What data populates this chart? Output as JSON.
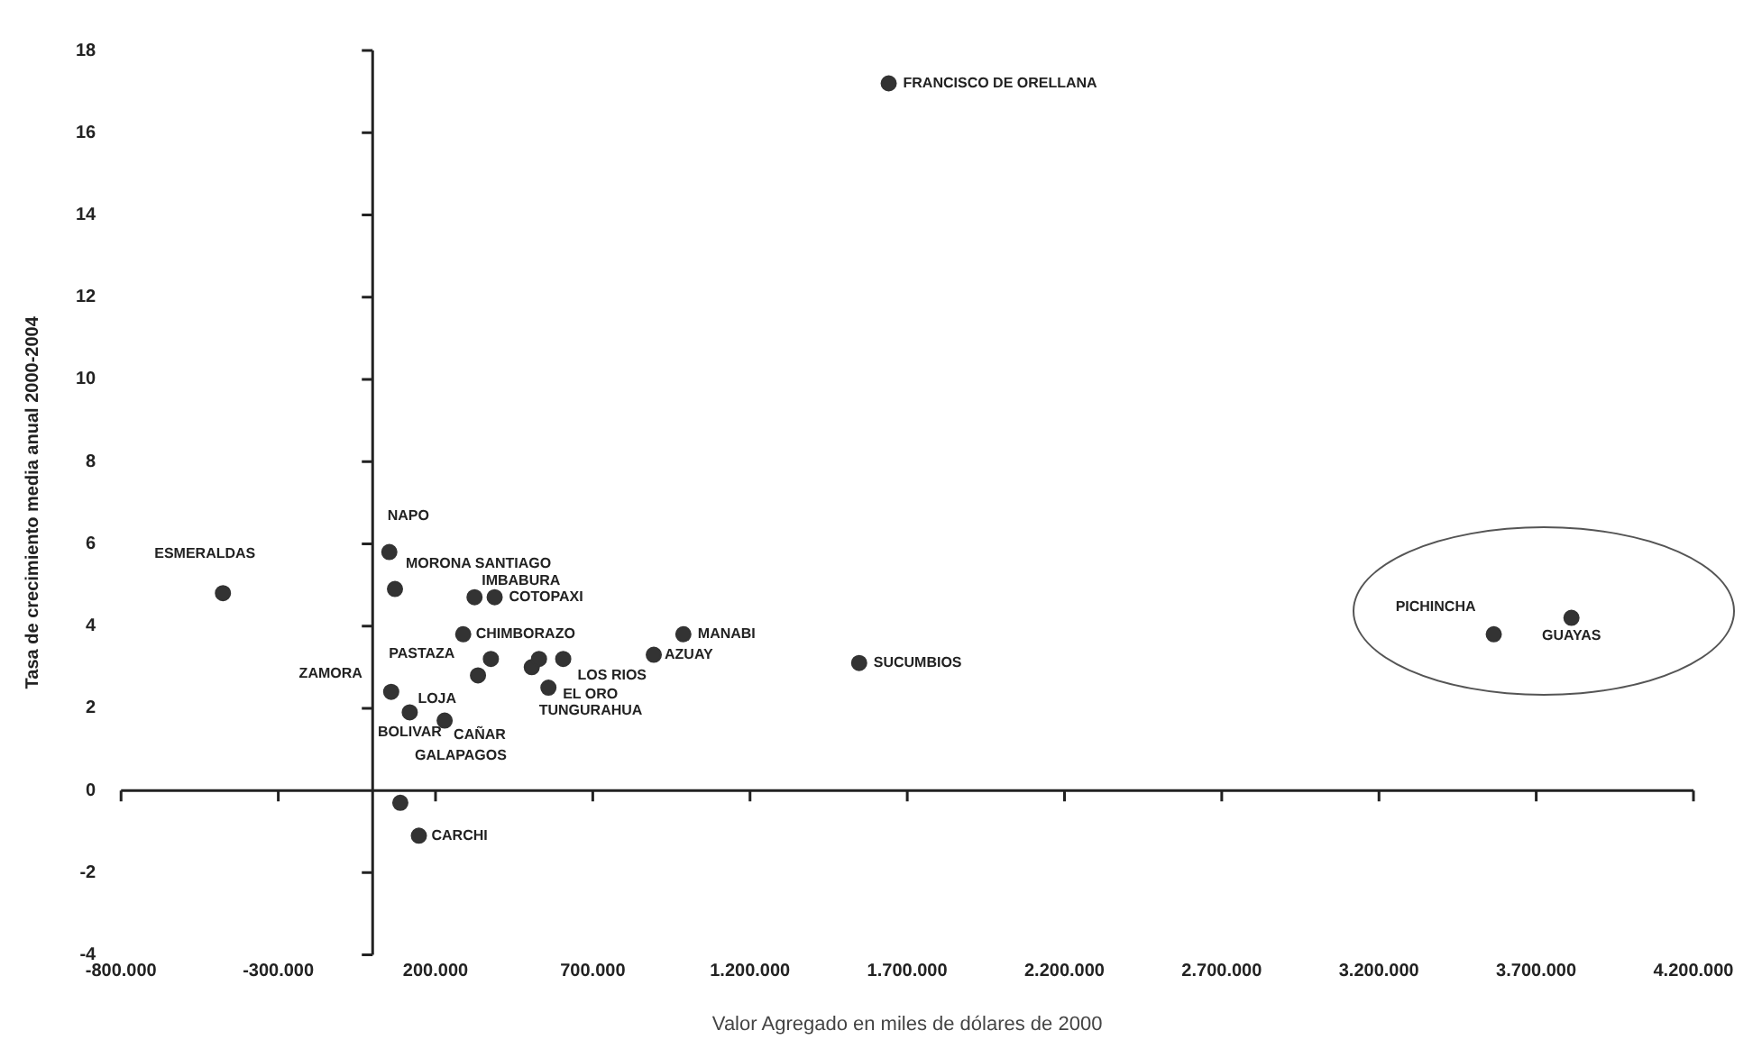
{
  "chart_data": {
    "type": "scatter",
    "xlabel": "Valor Agregado en miles de dólares de 2000",
    "ylabel": "Tasa de crecimiento media anual 2000-2004",
    "x": [
      -476000,
      53000,
      71000,
      324000,
      388000,
      288000,
      376000,
      59000,
      335000,
      118000,
      229000,
      88000,
      506000,
      529000,
      606000,
      559000,
      988000,
      894000,
      1547000,
      147000,
      1641000,
      3565000,
      3812000
    ],
    "series": [
      {
        "color": "#333333",
        "values": [
          4.8,
          5.8,
          4.9,
          4.7,
          4.7,
          3.8,
          3.2,
          2.4,
          2.8,
          1.9,
          1.7,
          -0.3,
          3.0,
          3.2,
          3.2,
          2.5,
          3.8,
          3.3,
          3.1,
          -1.1,
          17.2,
          3.8,
          4.2
        ]
      }
    ],
    "marker": "circle",
    "legend": false,
    "xlim": [
      -800000,
      4200000
    ],
    "xticks": [
      {
        "value": -800000,
        "label": "-800.000"
      },
      {
        "value": -300000,
        "label": "-300.000"
      },
      {
        "value": 200000,
        "label": "200.000"
      },
      {
        "value": 700000,
        "label": "700.000"
      },
      {
        "value": 1200000,
        "label": "1.200.000"
      },
      {
        "value": 1700000,
        "label": "1.700.000"
      },
      {
        "value": 2200000,
        "label": "2.200.000"
      },
      {
        "value": 2700000,
        "label": "2.700.000"
      },
      {
        "value": 3200000,
        "label": "3.200.000"
      },
      {
        "value": 3700000,
        "label": "3.700.000"
      },
      {
        "value": 4200000,
        "label": "4.200.000"
      }
    ],
    "ylim": [
      -4,
      18
    ],
    "yticks": [
      -4,
      -2,
      0,
      2,
      4,
      6,
      8,
      10,
      12,
      14,
      16,
      18
    ],
    "annotations": [
      {
        "text": "ESMERALDAS",
        "x": -476000,
        "y": 4.8
      },
      {
        "text": "NAPO",
        "x": 53000,
        "y": 5.8
      },
      {
        "text": "MORONA SANTIAGO",
        "x": 71000,
        "y": 4.9
      },
      {
        "text": "IMBABURA",
        "x": 324000,
        "y": 4.7
      },
      {
        "text": "COTOPAXI",
        "x": 388000,
        "y": 4.7
      },
      {
        "text": "CHIMBORAZO",
        "x": 288000,
        "y": 3.8
      },
      {
        "text": "PASTAZA",
        "x": 376000,
        "y": 3.2
      },
      {
        "text": "ZAMORA",
        "x": 59000,
        "y": 2.4
      },
      {
        "text": "LOJA",
        "x": 335000,
        "y": 2.8
      },
      {
        "text": "BOLIVAR",
        "x": 118000,
        "y": 1.9
      },
      {
        "text": "CAÑAR",
        "x": 229000,
        "y": 1.7
      },
      {
        "text": "GALAPAGOS",
        "x": 88000,
        "y": -0.3
      },
      {
        "text": "TUNGURAHUA",
        "x": 506000,
        "y": 3.0
      },
      {
        "text": "LOS RIOS",
        "x": 606000,
        "y": 3.2
      },
      {
        "text": "EL ORO",
        "x": 559000,
        "y": 2.5
      },
      {
        "text": "MANABI",
        "x": 988000,
        "y": 3.8
      },
      {
        "text": "AZUAY",
        "x": 894000,
        "y": 3.3
      },
      {
        "text": "SUCUMBIOS",
        "x": 1547000,
        "y": 3.1
      },
      {
        "text": "CARCHI",
        "x": 147000,
        "y": -1.1
      },
      {
        "text": "FRANCISCO DE ORELLANA",
        "x": 1641000,
        "y": 17.2
      },
      {
        "text": "PICHINCHA",
        "x": 3565000,
        "y": 3.8
      },
      {
        "text": "GUAYAS",
        "x": 3812000,
        "y": 4.2
      }
    ]
  }
}
